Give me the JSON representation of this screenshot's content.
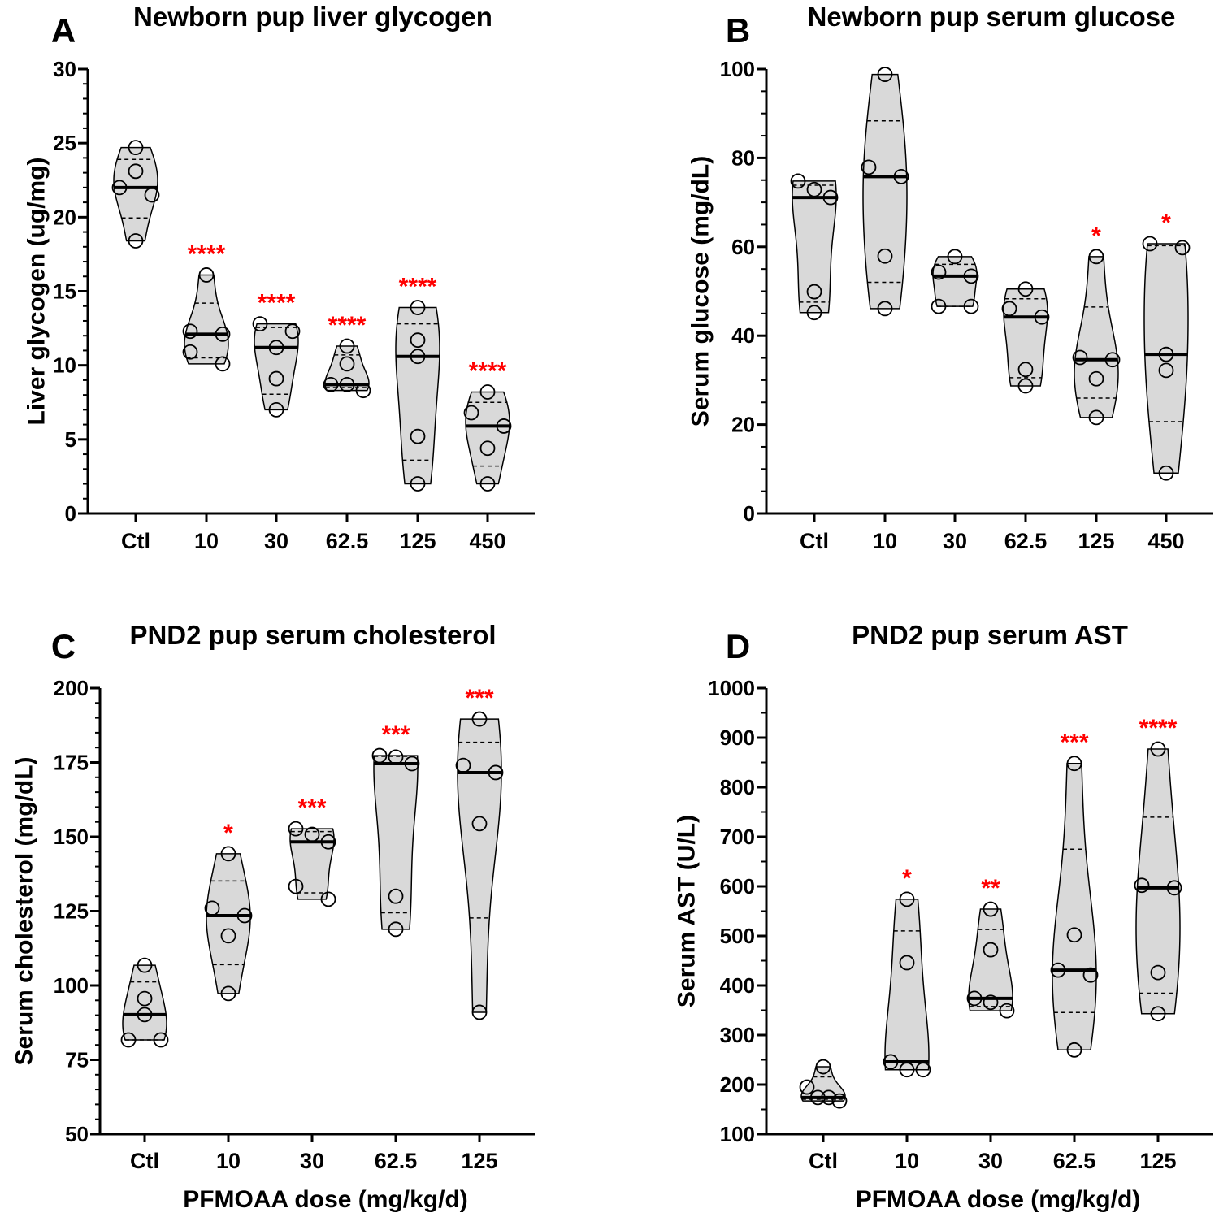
{
  "chart_data": [
    {
      "type": "violin",
      "letter": "A",
      "title": "Newborn pup liver glycogen",
      "ylabel": "Liver glycogen (ug/mg)",
      "xlabel": "",
      "ylim": [
        0,
        30
      ],
      "yticks": [
        0,
        5,
        10,
        15,
        20,
        25,
        30
      ],
      "minor_step": 1,
      "categories": [
        "Ctl",
        "10",
        "30",
        "62.5",
        "125",
        "450"
      ],
      "significance": [
        "",
        "****",
        "****",
        "****",
        "****",
        "****"
      ],
      "series": [
        {
          "name": "Ctl",
          "values": [
            24.7,
            23.1,
            22.0,
            21.5,
            18.4
          ]
        },
        {
          "name": "10",
          "values": [
            16.1,
            12.3,
            12.1,
            10.9,
            10.1
          ]
        },
        {
          "name": "30",
          "values": [
            12.8,
            12.3,
            11.2,
            9.1,
            7.0
          ]
        },
        {
          "name": "62.5",
          "values": [
            11.3,
            10.1,
            8.7,
            8.7,
            8.3
          ]
        },
        {
          "name": "125",
          "values": [
            13.9,
            11.7,
            10.6,
            5.2,
            2.0
          ]
        },
        {
          "name": "450",
          "values": [
            8.2,
            6.8,
            5.9,
            4.4,
            2.0
          ]
        }
      ]
    },
    {
      "type": "violin",
      "letter": "B",
      "title": "Newborn pup serum glucose",
      "ylabel": "Serum glucose (mg/dL)",
      "xlabel": "",
      "ylim": [
        0,
        100
      ],
      "yticks": [
        0,
        20,
        40,
        60,
        80,
        100
      ],
      "minor_step": 5,
      "categories": [
        "Ctl",
        "10",
        "30",
        "62.5",
        "125",
        "450"
      ],
      "significance": [
        "",
        "",
        "",
        "",
        "*",
        "*"
      ],
      "series": [
        {
          "name": "Ctl",
          "values": [
            74.8,
            72.9,
            71.1,
            49.9,
            45.2
          ]
        },
        {
          "name": "10",
          "values": [
            98.8,
            77.9,
            75.8,
            57.9,
            46.1
          ]
        },
        {
          "name": "30",
          "values": [
            57.8,
            54.3,
            53.4,
            46.6,
            46.6
          ]
        },
        {
          "name": "62.5",
          "values": [
            50.5,
            46.1,
            44.2,
            32.4,
            28.7
          ]
        },
        {
          "name": "125",
          "values": [
            57.8,
            35.1,
            34.6,
            30.3,
            21.6
          ]
        },
        {
          "name": "450",
          "values": [
            60.7,
            59.8,
            35.8,
            32.2,
            9.1
          ]
        }
      ]
    },
    {
      "type": "violin",
      "letter": "C",
      "title": "PND2 pup serum cholesterol",
      "ylabel": "Serum cholesterol (mg/dL)",
      "xlabel": "PFMOAA dose (mg/kg/d)",
      "ylim": [
        50,
        200
      ],
      "yticks": [
        50,
        75,
        100,
        125,
        150,
        175,
        200
      ],
      "minor_step": 5,
      "categories": [
        "Ctl",
        "10",
        "30",
        "62.5",
        "125"
      ],
      "significance": [
        "",
        "*",
        "***",
        "***",
        "***"
      ],
      "series": [
        {
          "name": "Ctl",
          "values": [
            106.8,
            95.6,
            90.2,
            81.7,
            81.7
          ]
        },
        {
          "name": "10",
          "values": [
            144.3,
            126.0,
            123.5,
            116.7,
            97.3
          ]
        },
        {
          "name": "30",
          "values": [
            152.7,
            150.8,
            148.3,
            133.3,
            129.0
          ]
        },
        {
          "name": "62.5",
          "values": [
            177.3,
            176.8,
            174.6,
            130.0,
            118.9
          ]
        },
        {
          "name": "125",
          "values": [
            189.6,
            174.0,
            171.6,
            154.4,
            91.0
          ]
        }
      ]
    },
    {
      "type": "violin",
      "letter": "D",
      "title": "PND2 pup serum AST",
      "ylabel": "Serum AST (U/L)",
      "xlabel": "PFMOAA dose (mg/kg/d)",
      "ylim": [
        100,
        1000
      ],
      "yticks": [
        100,
        200,
        300,
        400,
        500,
        600,
        700,
        800,
        900,
        1000
      ],
      "minor_step": 50,
      "categories": [
        "Ctl",
        "10",
        "30",
        "62.5",
        "125"
      ],
      "significance": [
        "",
        "*",
        "**",
        "***",
        "****"
      ],
      "series": [
        {
          "name": "Ctl",
          "values": [
            236,
            195,
            174,
            174,
            167
          ]
        },
        {
          "name": "10",
          "values": [
            574,
            446,
            246,
            230,
            230
          ]
        },
        {
          "name": "30",
          "values": [
            554,
            472,
            374,
            366,
            349
          ]
        },
        {
          "name": "62.5",
          "values": [
            848,
            502,
            431,
            421,
            270
          ]
        },
        {
          "name": "125",
          "values": [
            877,
            602,
            597,
            426,
            343
          ]
        }
      ]
    }
  ],
  "colors": {
    "violin_fill": "#d9d9d9",
    "significance": "#ff0000",
    "axis": "#000000"
  }
}
